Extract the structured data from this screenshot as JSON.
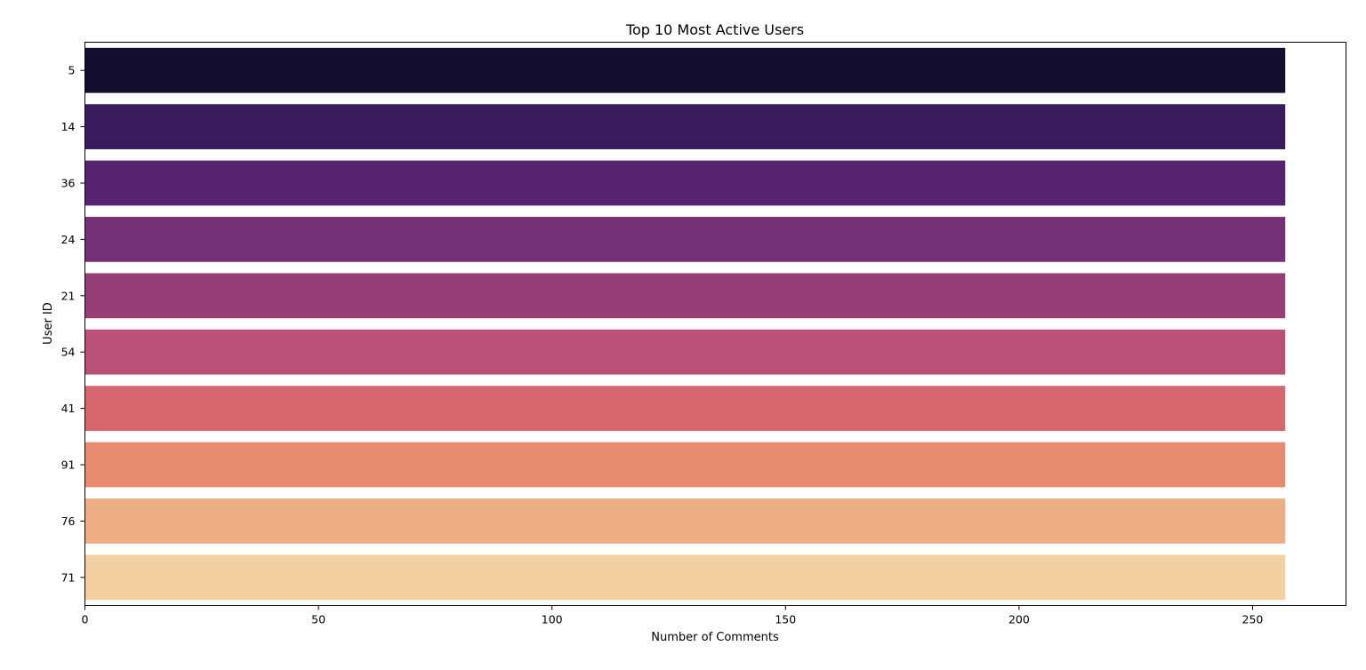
{
  "chart_data": {
    "type": "bar",
    "orientation": "horizontal",
    "title": "Top 10 Most Active Users",
    "xlabel": "Number of Comments",
    "ylabel": "User ID",
    "categories": [
      "5",
      "14",
      "36",
      "24",
      "21",
      "54",
      "41",
      "91",
      "76",
      "71"
    ],
    "values": [
      257,
      257,
      257,
      257,
      257,
      257,
      257,
      257,
      257,
      257
    ],
    "xlim": [
      0,
      270
    ],
    "xticks": [
      0,
      50,
      100,
      150,
      200,
      250
    ],
    "grid": false,
    "legend": "none",
    "colors": [
      "#150f2f",
      "#371b5b",
      "#57236f",
      "#743176",
      "#963f77",
      "#ba5075",
      "#d6676f",
      "#e68a70",
      "#edad85",
      "#f2d0a2"
    ]
  }
}
